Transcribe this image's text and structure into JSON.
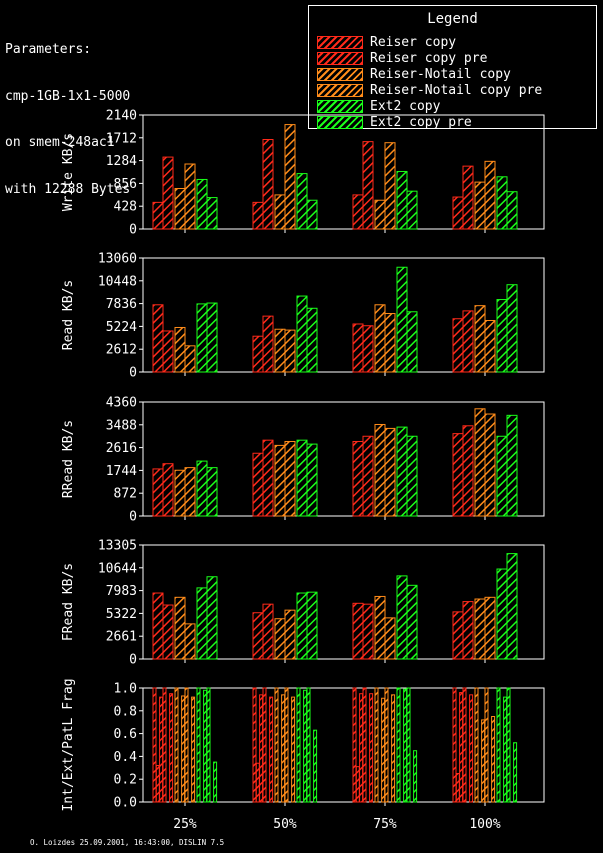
{
  "params": {
    "lines": [
      "Parameters:",
      "cmp-1GB-1x1-5000",
      "on smem-248ac1",
      "with 12288 Bytes"
    ]
  },
  "legend": {
    "title": "Legend",
    "items": [
      {
        "label": "Reiser copy",
        "color": "#ff2a1a"
      },
      {
        "label": "Reiser copy pre",
        "color": "#ff2a1a"
      },
      {
        "label": "Reiser-Notail copy",
        "color": "#ff8c1a"
      },
      {
        "label": "Reiser-Notail copy pre",
        "color": "#ff8c1a"
      },
      {
        "label": "Ext2 copy",
        "color": "#1aff1a"
      },
      {
        "label": "Ext2 copy pre",
        "color": "#1aff1a"
      }
    ]
  },
  "credit": "O. Loizdes 25.09.2001, 16:43:00, DISLIN 7.5",
  "chart_data": [
    {
      "type": "bar",
      "ylabel": "Write KB/s",
      "ylim": [
        0,
        2140
      ],
      "yticks": [
        "0",
        "428",
        "856",
        "1284",
        "1712",
        "2140"
      ],
      "categories": [
        "25%",
        "50%",
        "75%",
        "100%"
      ],
      "series": [
        {
          "name": "Reiser copy",
          "values": [
            500,
            500,
            640,
            600
          ]
        },
        {
          "name": "Reiser copy pre",
          "values": [
            1350,
            1680,
            1640,
            1180
          ]
        },
        {
          "name": "Reiser-Notail copy",
          "values": [
            760,
            640,
            540,
            880
          ]
        },
        {
          "name": "Reiser-Notail copy pre",
          "values": [
            1220,
            1960,
            1620,
            1270
          ]
        },
        {
          "name": "Ext2 copy",
          "values": [
            930,
            1040,
            1080,
            980
          ]
        },
        {
          "name": "Ext2 copy pre",
          "values": [
            590,
            540,
            710,
            700
          ]
        }
      ]
    },
    {
      "type": "bar",
      "ylabel": "Read KB/s",
      "ylim": [
        0,
        13060
      ],
      "yticks": [
        "0",
        "2612",
        "5224",
        "7836",
        "10448",
        "13060"
      ],
      "categories": [
        "25%",
        "50%",
        "75%",
        "100%"
      ],
      "series": [
        {
          "name": "Reiser copy",
          "values": [
            7700,
            4100,
            5500,
            6100
          ]
        },
        {
          "name": "Reiser copy pre",
          "values": [
            4700,
            6400,
            5300,
            7000
          ]
        },
        {
          "name": "Reiser-Notail copy",
          "values": [
            5100,
            4900,
            7700,
            7600
          ]
        },
        {
          "name": "Reiser-Notail copy pre",
          "values": [
            3000,
            4800,
            6700,
            5900
          ]
        },
        {
          "name": "Ext2 copy",
          "values": [
            7800,
            8700,
            12000,
            8300
          ]
        },
        {
          "name": "Ext2 copy pre",
          "values": [
            7900,
            7300,
            6900,
            10000
          ]
        }
      ]
    },
    {
      "type": "bar",
      "ylabel": "RRead KB/s",
      "ylim": [
        0,
        4360
      ],
      "yticks": [
        "0",
        "872",
        "1744",
        "2616",
        "3488",
        "4360"
      ],
      "categories": [
        "25%",
        "50%",
        "75%",
        "100%"
      ],
      "series": [
        {
          "name": "Reiser copy",
          "values": [
            1800,
            2400,
            2850,
            3150
          ]
        },
        {
          "name": "Reiser copy pre",
          "values": [
            2000,
            2900,
            3050,
            3450
          ]
        },
        {
          "name": "Reiser-Notail copy",
          "values": [
            1750,
            2700,
            3500,
            4100
          ]
        },
        {
          "name": "Reiser-Notail copy pre",
          "values": [
            1850,
            2850,
            3350,
            3900
          ]
        },
        {
          "name": "Ext2 copy",
          "values": [
            2100,
            2900,
            3400,
            3050
          ]
        },
        {
          "name": "Ext2 copy pre",
          "values": [
            1850,
            2750,
            3050,
            3850
          ]
        }
      ]
    },
    {
      "type": "bar",
      "ylabel": "FRead KB/s",
      "ylim": [
        0,
        13305
      ],
      "yticks": [
        "0",
        "2661",
        "5322",
        "7983",
        "10644",
        "13305"
      ],
      "categories": [
        "25%",
        "50%",
        "75%",
        "100%"
      ],
      "series": [
        {
          "name": "Reiser copy",
          "values": [
            7700,
            5400,
            6500,
            5500
          ]
        },
        {
          "name": "Reiser copy pre",
          "values": [
            6300,
            6400,
            6400,
            6700
          ]
        },
        {
          "name": "Reiser-Notail copy",
          "values": [
            7200,
            4700,
            7300,
            7000
          ]
        },
        {
          "name": "Reiser-Notail copy pre",
          "values": [
            4100,
            5700,
            4800,
            7200
          ]
        },
        {
          "name": "Ext2 copy",
          "values": [
            8300,
            7700,
            9700,
            10500
          ]
        },
        {
          "name": "Ext2 copy pre",
          "values": [
            9600,
            7800,
            8600,
            12300
          ]
        }
      ]
    },
    {
      "type": "bar",
      "ylabel": "Int/Ext/PatL Frag",
      "ylim": [
        0,
        1.0
      ],
      "yticks": [
        "0.0",
        "0.2",
        "0.4",
        "0.6",
        "0.8",
        "1.0"
      ],
      "categories": [
        "25%",
        "50%",
        "75%",
        "100%"
      ],
      "xticks": [
        "25%",
        "50%",
        "75%",
        "100%"
      ],
      "series": [
        {
          "name": "Reiser copy",
          "values": [
            [
              1.0,
              0.32,
              0.92
            ],
            [
              1.0,
              0.34,
              0.94
            ],
            [
              1.0,
              0.31,
              0.95
            ],
            [
              1.0,
              0.25,
              0.96
            ]
          ]
        },
        {
          "name": "Reiser copy pre",
          "values": [
            [
              1.0,
              0.0,
              0.95
            ],
            [
              1.0,
              0.0,
              0.92
            ],
            [
              1.0,
              0.0,
              0.95
            ],
            [
              1.0,
              0.0,
              0.94
            ]
          ]
        },
        {
          "name": "Reiser-Notail copy",
          "values": [
            [
              1.0,
              0.0,
              0.93
            ],
            [
              1.0,
              0.0,
              0.94
            ],
            [
              1.0,
              0.0,
              0.91
            ],
            [
              1.0,
              0.0,
              0.72
            ]
          ]
        },
        {
          "name": "Reiser-Notail copy pre",
          "values": [
            [
              1.0,
              0.0,
              0.92
            ],
            [
              1.0,
              0.0,
              0.92
            ],
            [
              1.0,
              0.0,
              0.94
            ],
            [
              1.0,
              0.0,
              0.75
            ]
          ]
        },
        {
          "name": "Ext2 copy",
          "values": [
            [
              1.0,
              0.0,
              0.98
            ],
            [
              1.0,
              0.0,
              0.98
            ],
            [
              1.0,
              0.0,
              0.99
            ],
            [
              1.0,
              0.0,
              0.92
            ]
          ]
        },
        {
          "name": "Ext2 copy pre",
          "values": [
            [
              1.0,
              0.0,
              0.35
            ],
            [
              1.0,
              0.0,
              0.63
            ],
            [
              1.0,
              0.0,
              0.45
            ],
            [
              1.0,
              0.0,
              0.52
            ]
          ]
        }
      ]
    }
  ]
}
